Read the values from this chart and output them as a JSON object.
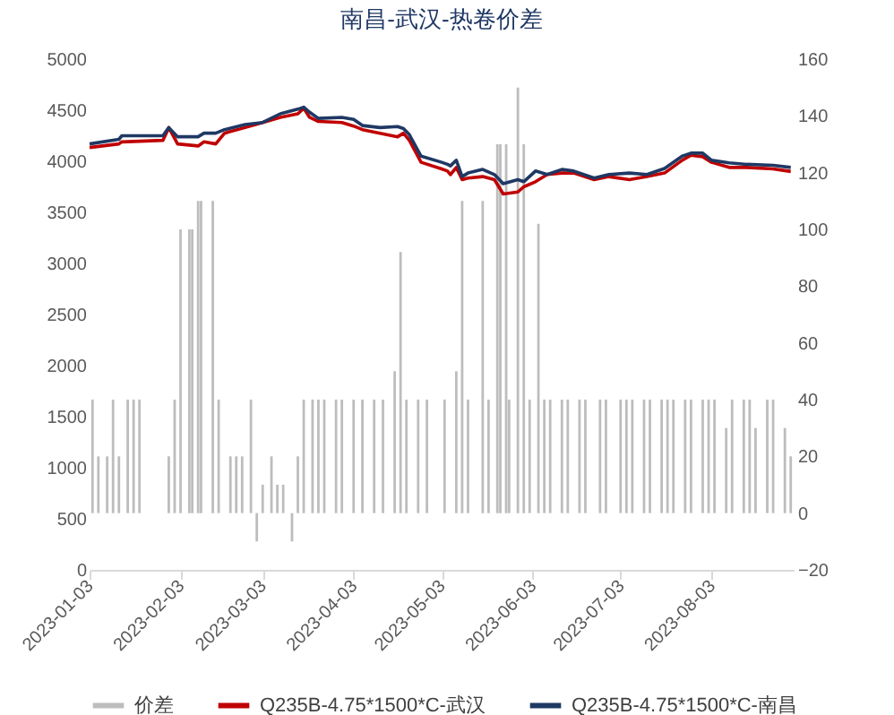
{
  "chart_data": {
    "type": "line",
    "title": "南昌-武汉-热卷价差",
    "xlim": [
      "2023-01-03",
      "2023-08-31"
    ],
    "xticks": [
      "2023-01-03",
      "2023-02-03",
      "2023-03-03",
      "2023-04-03",
      "2023-05-03",
      "2023-06-03",
      "2023-07-03",
      "2023-08-03"
    ],
    "ylim": [
      0,
      5000
    ],
    "yticks": [
      0,
      500,
      1000,
      1500,
      2000,
      2500,
      3000,
      3500,
      4000,
      4500,
      5000
    ],
    "y2lim": [
      -20,
      160
    ],
    "y2ticks": [
      -20,
      0,
      20,
      40,
      60,
      80,
      100,
      120,
      140,
      160
    ],
    "legend": "bottom",
    "series": [
      {
        "name": "价差",
        "type": "bar",
        "axis": "y2",
        "color": "#bdbdbd",
        "x": [
          "2023-01-04",
          "2023-01-06",
          "2023-01-09",
          "2023-01-11",
          "2023-01-13",
          "2023-01-16",
          "2023-01-18",
          "2023-01-20",
          "2023-01-30",
          "2023-02-01",
          "2023-02-03",
          "2023-02-06",
          "2023-02-07",
          "2023-02-09",
          "2023-02-10",
          "2023-02-14",
          "2023-02-16",
          "2023-02-20",
          "2023-02-22",
          "2023-02-24",
          "2023-02-27",
          "2023-03-01",
          "2023-03-03",
          "2023-03-06",
          "2023-03-08",
          "2023-03-10",
          "2023-03-13",
          "2023-03-15",
          "2023-03-17",
          "2023-03-20",
          "2023-03-22",
          "2023-03-24",
          "2023-03-28",
          "2023-03-30",
          "2023-04-03",
          "2023-04-06",
          "2023-04-10",
          "2023-04-13",
          "2023-04-17",
          "2023-04-19",
          "2023-04-21",
          "2023-04-25",
          "2023-04-28",
          "2023-05-04",
          "2023-05-08",
          "2023-05-10",
          "2023-05-12",
          "2023-05-17",
          "2023-05-19",
          "2023-05-22",
          "2023-05-23",
          "2023-05-25",
          "2023-05-26",
          "2023-05-29",
          "2023-05-31",
          "2023-06-02",
          "2023-06-05",
          "2023-06-07",
          "2023-06-09",
          "2023-06-13",
          "2023-06-15",
          "2023-06-19",
          "2023-06-21",
          "2023-06-26",
          "2023-06-28",
          "2023-07-03",
          "2023-07-05",
          "2023-07-07",
          "2023-07-11",
          "2023-07-13",
          "2023-07-17",
          "2023-07-19",
          "2023-07-21",
          "2023-07-25",
          "2023-07-27",
          "2023-07-31",
          "2023-08-02",
          "2023-08-04",
          "2023-08-08",
          "2023-08-10",
          "2023-08-14",
          "2023-08-16",
          "2023-08-18",
          "2023-08-22",
          "2023-08-24",
          "2023-08-28",
          "2023-08-30"
        ],
        "values": [
          40,
          20,
          20,
          40,
          20,
          40,
          40,
          40,
          20,
          40,
          100,
          100,
          100,
          110,
          110,
          110,
          40,
          20,
          20,
          20,
          40,
          -10,
          10,
          20,
          10,
          10,
          -10,
          20,
          40,
          40,
          40,
          40,
          40,
          40,
          40,
          40,
          40,
          40,
          50,
          92,
          40,
          40,
          40,
          40,
          50,
          110,
          40,
          110,
          40,
          130,
          130,
          130,
          40,
          150,
          130,
          40,
          102,
          40,
          40,
          40,
          40,
          40,
          40,
          40,
          40,
          40,
          40,
          40,
          40,
          40,
          40,
          40,
          40,
          40,
          40,
          40,
          40,
          40,
          30,
          40,
          40,
          40,
          30,
          40,
          40,
          30,
          20
        ]
      },
      {
        "name": "Q235B-4.75*1500*C-武汉",
        "color": "#c00000",
        "x": [
          "2023-01-03",
          "2023-01-13",
          "2023-01-14",
          "2023-01-28",
          "2023-01-30",
          "2023-02-02",
          "2023-02-09",
          "2023-02-11",
          "2023-02-15",
          "2023-02-18",
          "2023-02-25",
          "2023-03-03",
          "2023-03-09",
          "2023-03-15",
          "2023-03-17",
          "2023-03-19",
          "2023-03-22",
          "2023-03-30",
          "2023-04-03",
          "2023-04-06",
          "2023-04-12",
          "2023-04-18",
          "2023-04-20",
          "2023-04-22",
          "2023-04-26",
          "2023-05-03",
          "2023-05-05",
          "2023-05-06",
          "2023-05-08",
          "2023-05-10",
          "2023-05-12",
          "2023-05-17",
          "2023-05-21",
          "2023-05-24",
          "2023-05-29",
          "2023-05-31",
          "2023-06-04",
          "2023-06-08",
          "2023-06-13",
          "2023-06-17",
          "2023-06-24",
          "2023-06-29",
          "2023-07-06",
          "2023-07-12",
          "2023-07-18",
          "2023-07-24",
          "2023-07-27",
          "2023-07-31",
          "2023-08-03",
          "2023-08-09",
          "2023-08-15",
          "2023-08-24",
          "2023-08-30"
        ],
        "values": [
          4135,
          4170,
          4190,
          4205,
          4330,
          4170,
          4150,
          4190,
          4170,
          4275,
          4330,
          4380,
          4430,
          4465,
          4520,
          4430,
          4390,
          4380,
          4345,
          4310,
          4275,
          4240,
          4275,
          4205,
          3990,
          3925,
          3905,
          3870,
          3940,
          3820,
          3835,
          3850,
          3820,
          3680,
          3700,
          3750,
          3800,
          3870,
          3885,
          3885,
          3820,
          3850,
          3820,
          3850,
          3885,
          4010,
          4060,
          4045,
          3990,
          3940,
          3940,
          3925,
          3900
        ]
      },
      {
        "name": "Q235B-4.75*1500*C-南昌",
        "color": "#1f3864",
        "x": [
          "2023-01-03",
          "2023-01-13",
          "2023-01-14",
          "2023-01-28",
          "2023-01-30",
          "2023-02-02",
          "2023-02-09",
          "2023-02-11",
          "2023-02-15",
          "2023-02-18",
          "2023-02-25",
          "2023-03-03",
          "2023-03-09",
          "2023-03-15",
          "2023-03-17",
          "2023-03-19",
          "2023-03-22",
          "2023-03-30",
          "2023-04-03",
          "2023-04-06",
          "2023-04-12",
          "2023-04-18",
          "2023-04-20",
          "2023-04-22",
          "2023-04-26",
          "2023-05-03",
          "2023-05-05",
          "2023-05-06",
          "2023-05-08",
          "2023-05-10",
          "2023-05-12",
          "2023-05-17",
          "2023-05-21",
          "2023-05-24",
          "2023-05-29",
          "2023-05-31",
          "2023-06-04",
          "2023-06-08",
          "2023-06-13",
          "2023-06-17",
          "2023-06-24",
          "2023-06-29",
          "2023-07-06",
          "2023-07-12",
          "2023-07-18",
          "2023-07-24",
          "2023-07-27",
          "2023-07-31",
          "2023-08-03",
          "2023-08-09",
          "2023-08-15",
          "2023-08-24",
          "2023-08-30"
        ],
        "values": [
          4170,
          4215,
          4250,
          4250,
          4330,
          4240,
          4240,
          4275,
          4275,
          4310,
          4360,
          4380,
          4465,
          4510,
          4530,
          4480,
          4420,
          4430,
          4410,
          4350,
          4330,
          4340,
          4320,
          4260,
          4050,
          3990,
          3970,
          3955,
          4010,
          3850,
          3885,
          3920,
          3870,
          3780,
          3820,
          3800,
          3905,
          3870,
          3920,
          3905,
          3835,
          3870,
          3885,
          3870,
          3930,
          4050,
          4080,
          4080,
          4010,
          3985,
          3970,
          3960,
          3940
        ]
      }
    ]
  }
}
